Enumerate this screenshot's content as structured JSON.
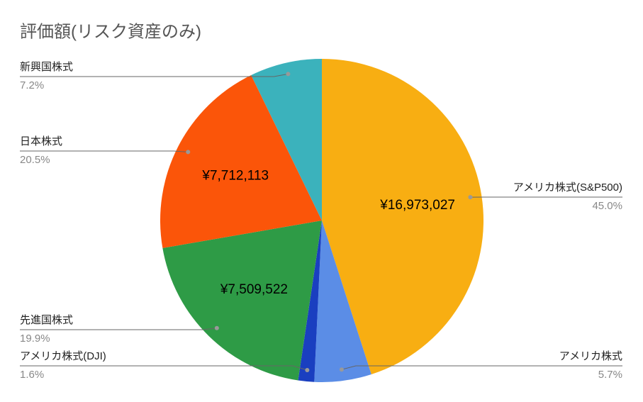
{
  "chart_data": {
    "type": "pie",
    "title": "評価額(リスク資産のみ)",
    "categories": [
      "アメリカ株式(S&P500)",
      "アメリカ株式",
      "アメリカ株式(DJI)",
      "先進国株式",
      "日本株式",
      "新興国株式"
    ],
    "values": [
      45.0,
      5.7,
      1.6,
      19.9,
      20.5,
      7.2
    ],
    "value_labels": [
      "45.0%",
      "5.7%",
      "1.6%",
      "19.9%",
      "20.5%",
      "7.2%"
    ],
    "amount_labels": [
      "¥16,973,027",
      null,
      null,
      "¥7,509,522",
      "¥7,712,113",
      null
    ],
    "colors": [
      "#f8ae12",
      "#5b8de6",
      "#1a3fc0",
      "#2e9b46",
      "#fb5509",
      "#3bb2bc"
    ]
  }
}
